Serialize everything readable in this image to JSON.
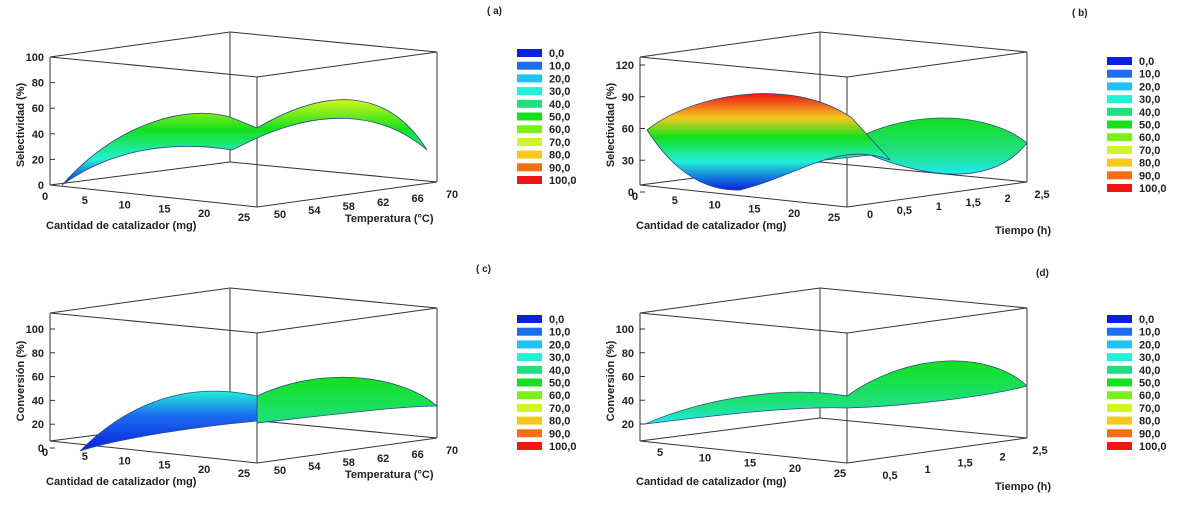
{
  "legend_colors": [
    "#0a1fe0",
    "#1b6ef0",
    "#1ec4f5",
    "#22f0d8",
    "#1ee080",
    "#14e01c",
    "#7cf01a",
    "#d2f51e",
    "#f5c81e",
    "#f56e14",
    "#f01414"
  ],
  "chart_data": [
    {
      "type": "surface3d",
      "panel_label": "( a)",
      "zlabel": "Selectividad (%)",
      "xlabel": "Cantidad de catalizador (mg)",
      "ylabel": "Temperatura (°C)",
      "z_ticks": [
        "0",
        "20",
        "40",
        "60",
        "80",
        "100"
      ],
      "x_ticks": [
        "0",
        "5",
        "10",
        "15",
        "20",
        "25"
      ],
      "y_ticks": [
        "50",
        "54",
        "58",
        "62",
        "66",
        "70"
      ],
      "zlim": [
        0,
        100
      ],
      "legend": [
        "0,0",
        "10,0",
        "20,0",
        "30,0",
        "40,0",
        "50,0",
        "60,0",
        "70,0",
        "80,0",
        "90,0",
        "100,0"
      ]
    },
    {
      "type": "surface3d",
      "panel_label": "( b)",
      "zlabel": "Selectividad (%)",
      "xlabel": "Cantidad de catalizador (mg)",
      "ylabel": "Tiempo (h)",
      "z_ticks": [
        "0",
        "30",
        "60",
        "90",
        "120"
      ],
      "x_ticks": [
        "0",
        "5",
        "10",
        "15",
        "20",
        "25"
      ],
      "y_ticks": [
        "0",
        "0,5",
        "1",
        "1,5",
        "2",
        "2,5"
      ],
      "zlim": [
        0,
        120
      ],
      "legend": [
        "0,0",
        "10,0",
        "20,0",
        "30,0",
        "40,0",
        "50,0",
        "60,0",
        "70,0",
        "80,0",
        "90,0",
        "100,0"
      ]
    },
    {
      "type": "surface3d",
      "panel_label": "( c)",
      "zlabel": "Conversión (%)",
      "xlabel": "Cantidad de catalizador (mg)",
      "ylabel": "Temperatura (°C)",
      "z_ticks": [
        "0",
        "20",
        "40",
        "60",
        "80",
        "100"
      ],
      "x_ticks": [
        "0",
        "5",
        "10",
        "15",
        "20",
        "25"
      ],
      "y_ticks": [
        "50",
        "54",
        "58",
        "62",
        "66",
        "70"
      ],
      "zlim": [
        0,
        100
      ],
      "legend": [
        "0,0",
        "10,0",
        "20,0",
        "30,0",
        "40,0",
        "50,0",
        "60,0",
        "70,0",
        "80,0",
        "90,0",
        "100,0"
      ]
    },
    {
      "type": "surface3d",
      "panel_label": "(d)",
      "zlabel": "Conversión (%)",
      "xlabel": "Cantidad de catalizador (mg)",
      "ylabel": "Tiempo (h)",
      "z_ticks": [
        "20",
        "40",
        "60",
        "80",
        "100"
      ],
      "x_ticks": [
        "5",
        "10",
        "15",
        "20",
        "25"
      ],
      "y_ticks": [
        "0,5",
        "1",
        "1,5",
        "2",
        "2,5"
      ],
      "zlim": [
        20,
        100
      ],
      "legend": [
        "0,0",
        "10,0",
        "20,0",
        "30,0",
        "40,0",
        "50,0",
        "60,0",
        "70,0",
        "80,0",
        "90,0",
        "100,0"
      ]
    }
  ]
}
